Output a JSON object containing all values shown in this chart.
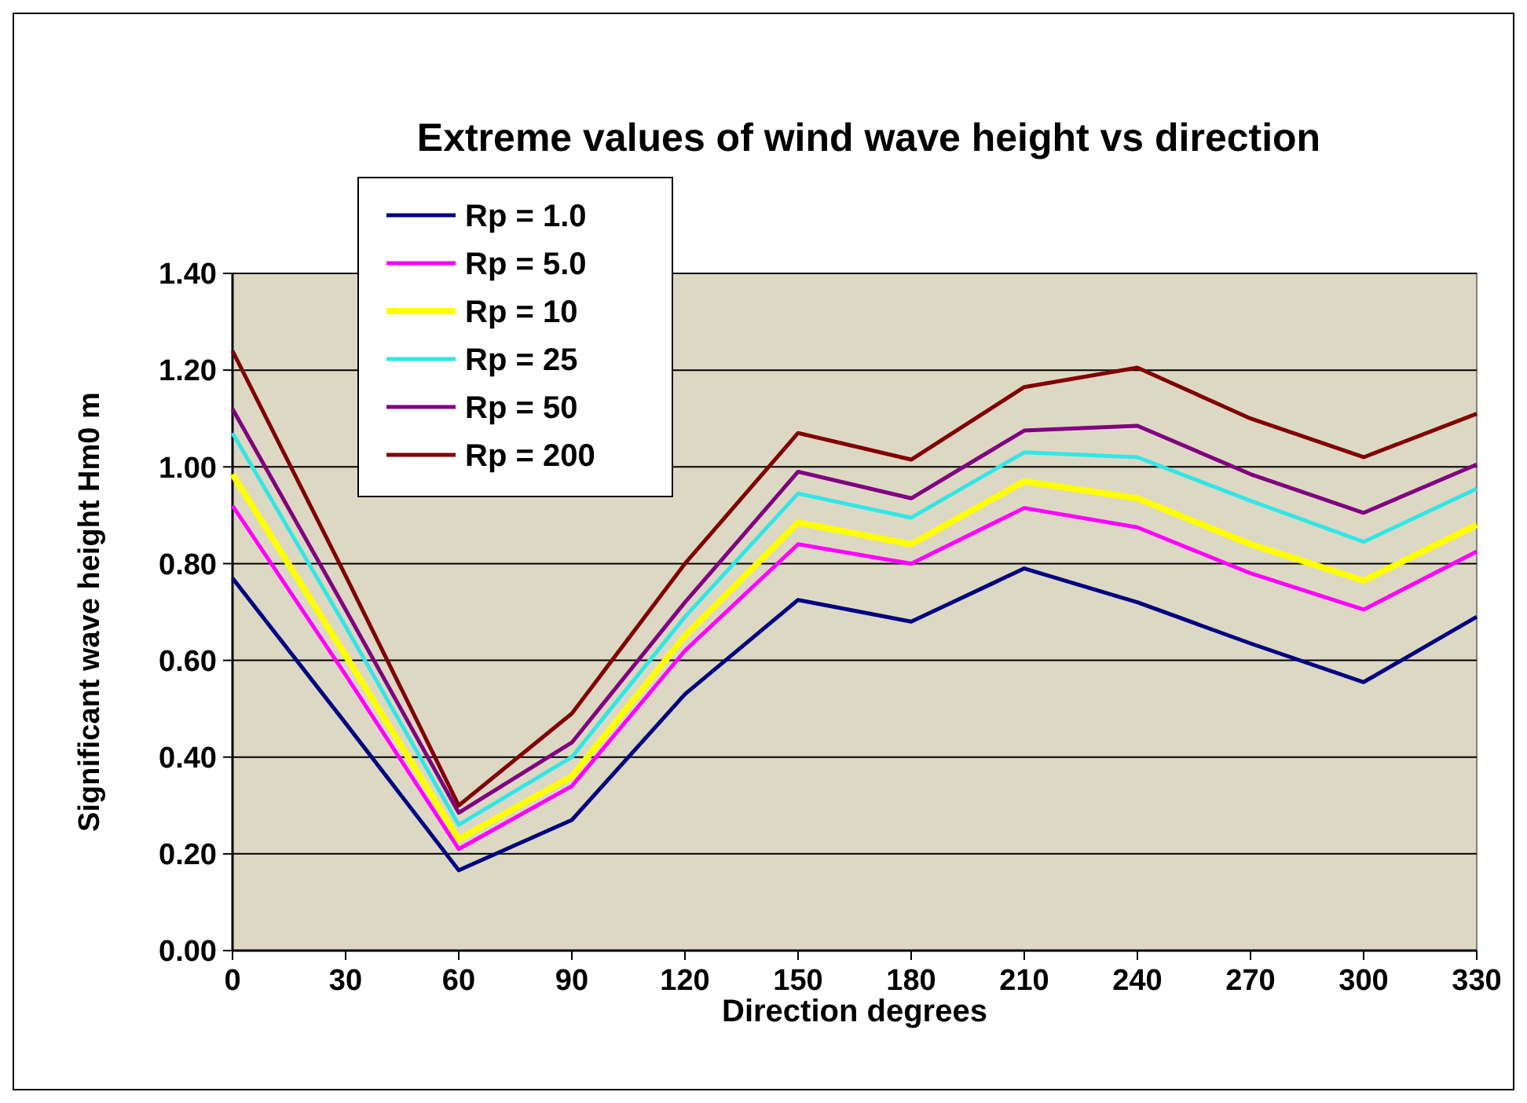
{
  "chart_data": {
    "type": "line",
    "title": "Extreme values of wind wave height vs direction",
    "xlabel": "Direction degrees",
    "ylabel": "Significant  wave height Hm0 m",
    "x": [
      0,
      30,
      60,
      90,
      120,
      150,
      180,
      210,
      240,
      270,
      300,
      330
    ],
    "xlim": [
      0,
      330
    ],
    "xticks": [
      0,
      30,
      60,
      90,
      120,
      150,
      180,
      210,
      240,
      270,
      300,
      330
    ],
    "ylim": [
      0,
      1.4
    ],
    "yticks": [
      {
        "value": 0,
        "label": "0.00"
      },
      {
        "value": 0.2,
        "label": "0.20"
      },
      {
        "value": 0.4,
        "label": "0.40"
      },
      {
        "value": 0.6,
        "label": "0.60"
      },
      {
        "value": 0.8,
        "label": "0.80"
      },
      {
        "value": 1.0,
        "label": "1.00"
      },
      {
        "value": 1.2,
        "label": "1.20"
      },
      {
        "value": 1.4,
        "label": "1.40"
      }
    ],
    "grid": "y",
    "legend": "top left",
    "marker": "none",
    "line_style": "solid",
    "series": [
      {
        "name": "Rp = 1.0",
        "color": "#000080",
        "values": [
          0.77,
          0.47,
          0.166,
          0.27,
          0.53,
          0.725,
          0.68,
          0.79,
          0.72,
          0.635,
          0.555,
          0.69
        ]
      },
      {
        "name": "Rp = 5.0",
        "color": "#ff00ff",
        "values": [
          0.92,
          0.57,
          0.21,
          0.34,
          0.62,
          0.84,
          0.8,
          0.915,
          0.875,
          0.78,
          0.705,
          0.825
        ]
      },
      {
        "name": "Rp = 10",
        "color": "#ffff00",
        "values": [
          0.985,
          0.61,
          0.23,
          0.36,
          0.65,
          0.885,
          0.84,
          0.97,
          0.935,
          0.84,
          0.765,
          0.88
        ]
      },
      {
        "name": "Rp = 25",
        "color": "#33e6e6",
        "values": [
          1.07,
          0.67,
          0.26,
          0.4,
          0.69,
          0.945,
          0.895,
          1.03,
          1.02,
          0.93,
          0.845,
          0.955
        ]
      },
      {
        "name": "Rp = 50",
        "color": "#800080",
        "values": [
          1.12,
          0.705,
          0.285,
          0.43,
          0.72,
          0.99,
          0.935,
          1.075,
          1.085,
          0.985,
          0.905,
          1.005
        ]
      },
      {
        "name": "Rp = 200",
        "color": "#800000",
        "values": [
          1.24,
          0.775,
          0.3,
          0.49,
          0.8,
          1.07,
          1.015,
          1.165,
          1.205,
          1.1,
          1.02,
          1.11
        ]
      }
    ]
  }
}
